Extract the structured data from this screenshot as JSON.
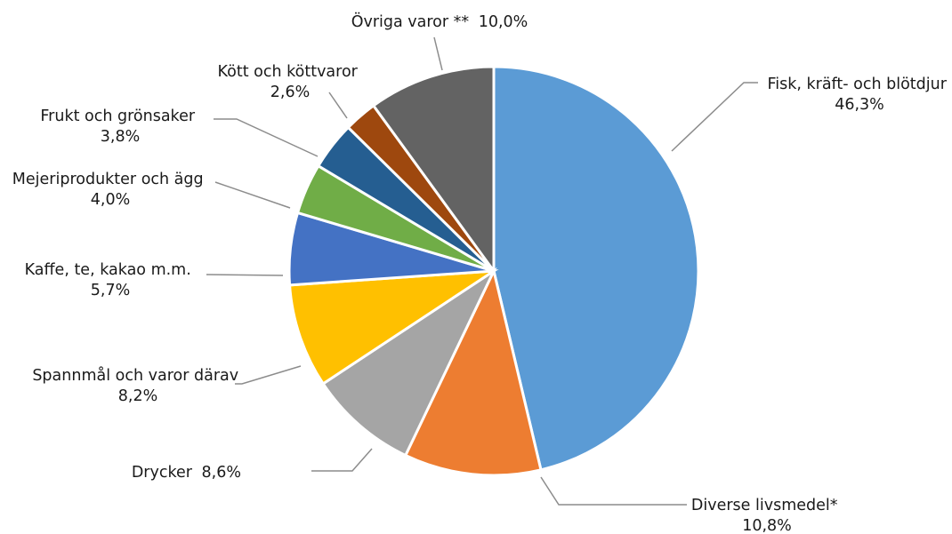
{
  "chart_data": {
    "type": "pie",
    "title": "",
    "start_angle_deg": 0,
    "direction": "clockwise",
    "slices": [
      {
        "label": "Fisk, kräft- och blötdjur",
        "value": 46.3,
        "value_label": "46,3%",
        "color": "#5b9bd5"
      },
      {
        "label": "Diverse livsmedel*",
        "value": 10.8,
        "value_label": "10,8%",
        "color": "#ed7d31"
      },
      {
        "label": "Drycker",
        "value": 8.6,
        "value_label": "8,6%",
        "color": "#a5a5a5"
      },
      {
        "label": "Spannmål och varor därav",
        "value": 8.2,
        "value_label": "8,2%",
        "color": "#ffc000"
      },
      {
        "label": "Kaffe, te, kakao m.m.",
        "value": 5.7,
        "value_label": "5,7%",
        "color": "#4472c4"
      },
      {
        "label": "Mejeriprodukter och ägg",
        "value": 4.0,
        "value_label": "4,0%",
        "color": "#70ad47"
      },
      {
        "label": "Frukt och grönsaker",
        "value": 3.8,
        "value_label": "3,8%",
        "color": "#255e91"
      },
      {
        "label": "Kött och köttvaror",
        "value": 2.6,
        "value_label": "2,6%",
        "color": "#9e480e"
      },
      {
        "label": "Övriga varor **",
        "value": 10.0,
        "value_label": "10,0%",
        "color": "#636363"
      }
    ]
  }
}
